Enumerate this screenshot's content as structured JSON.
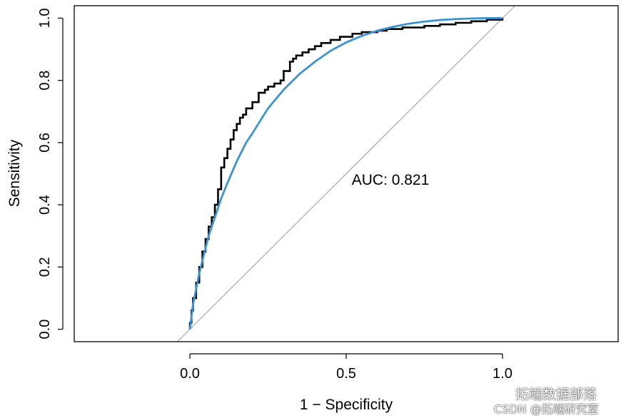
{
  "chart_data": {
    "type": "line",
    "xlabel": "1 − Specificity",
    "ylabel": "Sensitivity",
    "xlim": [
      -0.37,
      1.37
    ],
    "ylim": [
      -0.04,
      1.04
    ],
    "xticks": [
      0.0,
      0.5,
      1.0
    ],
    "xtick_labels": [
      "0.0",
      "0.5",
      "1.0"
    ],
    "yticks": [
      0.0,
      0.2,
      0.4,
      0.6,
      0.8,
      1.0
    ],
    "ytick_labels": [
      "0.0",
      "0.2",
      "0.4",
      "0.6",
      "0.8",
      "1.0"
    ],
    "grid": false,
    "annotation": {
      "text": "AUC: 0.821",
      "x": 0.5,
      "y": 0.48
    },
    "series": [
      {
        "color": "#000000",
        "style": "empirical-step",
        "x": [
          0.0,
          0.0,
          0.005,
          0.005,
          0.01,
          0.01,
          0.02,
          0.02,
          0.03,
          0.03,
          0.04,
          0.04,
          0.05,
          0.05,
          0.06,
          0.06,
          0.07,
          0.07,
          0.08,
          0.08,
          0.09,
          0.09,
          0.1,
          0.1,
          0.11,
          0.11,
          0.12,
          0.12,
          0.13,
          0.13,
          0.14,
          0.14,
          0.15,
          0.15,
          0.16,
          0.16,
          0.17,
          0.17,
          0.18,
          0.18,
          0.2,
          0.2,
          0.22,
          0.22,
          0.24,
          0.24,
          0.25,
          0.25,
          0.27,
          0.27,
          0.29,
          0.29,
          0.3,
          0.3,
          0.32,
          0.32,
          0.33,
          0.33,
          0.34,
          0.34,
          0.36,
          0.36,
          0.38,
          0.38,
          0.4,
          0.4,
          0.42,
          0.42,
          0.45,
          0.45,
          0.48,
          0.48,
          0.52,
          0.52,
          0.55,
          0.55,
          0.6,
          0.6,
          0.63,
          0.63,
          0.68,
          0.68,
          0.75,
          0.75,
          0.8,
          0.8,
          0.85,
          0.85,
          0.9,
          0.9,
          0.95,
          0.95,
          1.0,
          1.0
        ],
        "y": [
          0.0,
          0.02,
          0.02,
          0.06,
          0.06,
          0.1,
          0.1,
          0.15,
          0.15,
          0.2,
          0.2,
          0.25,
          0.25,
          0.29,
          0.29,
          0.33,
          0.33,
          0.36,
          0.36,
          0.4,
          0.4,
          0.45,
          0.45,
          0.52,
          0.52,
          0.55,
          0.55,
          0.58,
          0.58,
          0.61,
          0.61,
          0.64,
          0.64,
          0.66,
          0.66,
          0.68,
          0.68,
          0.69,
          0.69,
          0.71,
          0.71,
          0.73,
          0.73,
          0.76,
          0.76,
          0.77,
          0.77,
          0.78,
          0.78,
          0.79,
          0.79,
          0.8,
          0.8,
          0.83,
          0.83,
          0.86,
          0.86,
          0.87,
          0.87,
          0.88,
          0.88,
          0.89,
          0.89,
          0.9,
          0.9,
          0.91,
          0.91,
          0.92,
          0.92,
          0.93,
          0.93,
          0.94,
          0.94,
          0.95,
          0.95,
          0.955,
          0.955,
          0.96,
          0.96,
          0.965,
          0.965,
          0.97,
          0.97,
          0.975,
          0.975,
          0.98,
          0.98,
          0.985,
          0.985,
          0.99,
          0.99,
          0.995,
          0.995,
          1.0
        ]
      },
      {
        "color": "#3a93d3",
        "style": "smoothed",
        "x": [
          0.0,
          0.01,
          0.02,
          0.03,
          0.04,
          0.05,
          0.06,
          0.07,
          0.08,
          0.1,
          0.12,
          0.15,
          0.18,
          0.2,
          0.25,
          0.3,
          0.35,
          0.4,
          0.45,
          0.5,
          0.55,
          0.6,
          0.65,
          0.7,
          0.75,
          0.8,
          0.85,
          0.9,
          0.95,
          1.0
        ],
        "y": [
          0.0,
          0.08,
          0.13,
          0.18,
          0.22,
          0.26,
          0.3,
          0.33,
          0.36,
          0.42,
          0.47,
          0.54,
          0.6,
          0.63,
          0.71,
          0.77,
          0.82,
          0.86,
          0.895,
          0.922,
          0.943,
          0.96,
          0.972,
          0.982,
          0.989,
          0.994,
          0.997,
          0.999,
          1.0,
          1.0
        ]
      },
      {
        "color": "#a8a8a8",
        "style": "diagonal",
        "x": [
          -0.04,
          1.04
        ],
        "y": [
          -0.04,
          1.04
        ]
      }
    ]
  },
  "watermark": {
    "line1": "拓端数据部落",
    "line2": "CSDN @拓端研究室"
  }
}
